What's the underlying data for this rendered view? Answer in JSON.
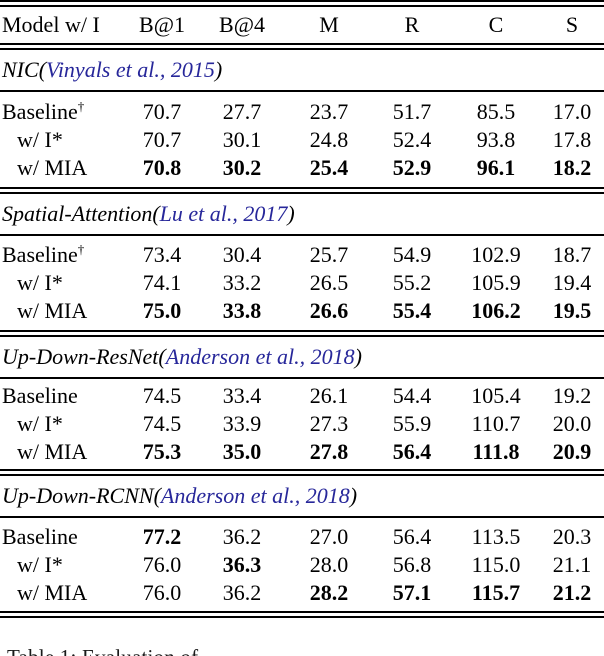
{
  "colors": {
    "citation_blue": "#27279a",
    "text": "#000000"
  },
  "table": {
    "columns": [
      "Model w/ I",
      "B@1",
      "B@4",
      "M",
      "R",
      "C",
      "S"
    ],
    "punct": {
      "open": " (",
      "close": ")"
    },
    "sections": [
      {
        "name": "NIC",
        "citation": "Vinyals et al., 2015",
        "rows": [
          {
            "label": "Baseline",
            "sup": "†",
            "values": [
              "70.7",
              "27.7",
              "23.7",
              "51.7",
              "85.5",
              "17.0"
            ],
            "bold": [
              false,
              false,
              false,
              false,
              false,
              false
            ]
          },
          {
            "label": "w/ I*",
            "sup": "",
            "values": [
              "70.7",
              "30.1",
              "24.8",
              "52.4",
              "93.8",
              "17.8"
            ],
            "bold": [
              false,
              false,
              false,
              false,
              false,
              false
            ]
          },
          {
            "label": "w/ MIA",
            "sup": "",
            "values": [
              "70.8",
              "30.2",
              "25.4",
              "52.9",
              "96.1",
              "18.2"
            ],
            "bold": [
              true,
              true,
              true,
              true,
              true,
              true
            ]
          }
        ]
      },
      {
        "name": "Spatial-Attention",
        "citation": "Lu et al., 2017",
        "rows": [
          {
            "label": "Baseline",
            "sup": "†",
            "values": [
              "73.4",
              "30.4",
              "25.7",
              "54.9",
              "102.9",
              "18.7"
            ],
            "bold": [
              false,
              false,
              false,
              false,
              false,
              false
            ]
          },
          {
            "label": "w/ I*",
            "sup": "",
            "values": [
              "74.1",
              "33.2",
              "26.5",
              "55.2",
              "105.9",
              "19.4"
            ],
            "bold": [
              false,
              false,
              false,
              false,
              false,
              false
            ]
          },
          {
            "label": "w/ MIA",
            "sup": "",
            "values": [
              "75.0",
              "33.8",
              "26.6",
              "55.4",
              "106.2",
              "19.5"
            ],
            "bold": [
              true,
              true,
              true,
              true,
              true,
              true
            ]
          }
        ]
      },
      {
        "name": "Up-Down-ResNet",
        "citation": "Anderson et al., 2018",
        "rows": [
          {
            "label": "Baseline",
            "sup": "",
            "values": [
              "74.5",
              "33.4",
              "26.1",
              "54.4",
              "105.4",
              "19.2"
            ],
            "bold": [
              false,
              false,
              false,
              false,
              false,
              false
            ]
          },
          {
            "label": "w/ I*",
            "sup": "",
            "values": [
              "74.5",
              "33.9",
              "27.3",
              "55.9",
              "110.7",
              "20.0"
            ],
            "bold": [
              false,
              false,
              false,
              false,
              false,
              false
            ]
          },
          {
            "label": "w/ MIA",
            "sup": "",
            "values": [
              "75.3",
              "35.0",
              "27.8",
              "56.4",
              "111.8",
              "20.9"
            ],
            "bold": [
              true,
              true,
              true,
              true,
              true,
              true
            ]
          }
        ]
      },
      {
        "name": "Up-Down-RCNN",
        "citation": "Anderson et al., 2018",
        "rows": [
          {
            "label": "Baseline",
            "sup": "",
            "values": [
              "77.2",
              "36.2",
              "27.0",
              "56.4",
              "113.5",
              "20.3"
            ],
            "bold": [
              true,
              false,
              false,
              false,
              false,
              false
            ]
          },
          {
            "label": "w/ I*",
            "sup": "",
            "values": [
              "76.0",
              "36.3",
              "28.0",
              "56.8",
              "115.0",
              "21.1"
            ],
            "bold": [
              false,
              true,
              false,
              false,
              false,
              false
            ]
          },
          {
            "label": "w/ MIA",
            "sup": "",
            "values": [
              "76.0",
              "36.2",
              "28.2",
              "57.1",
              "115.7",
              "21.2"
            ],
            "bold": [
              false,
              false,
              true,
              true,
              true,
              true
            ]
          }
        ]
      }
    ],
    "caption_fragment": "Table 1: Evaluation of"
  }
}
